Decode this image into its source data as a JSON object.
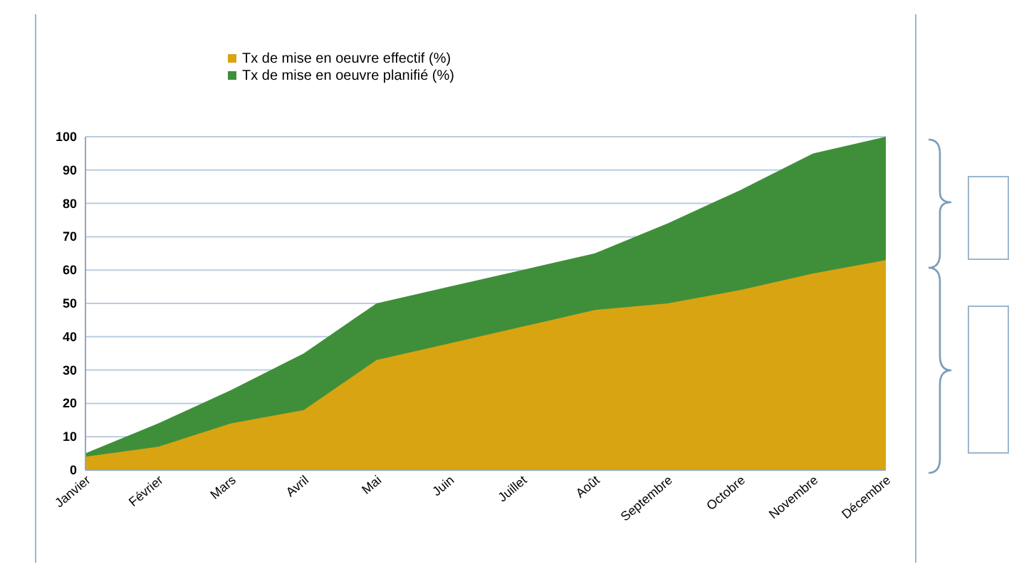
{
  "chart_data": {
    "type": "area",
    "categories": [
      "Janvier",
      "Février",
      "Mars",
      "Avril",
      "Mai",
      "Juin",
      "Juillet",
      "Août",
      "Septembre",
      "Octobre",
      "Novembre",
      "Décembre"
    ],
    "series": [
      {
        "name": "Tx de mise en oeuvre planifié (%)",
        "color": "#3f8f3a",
        "values": [
          5,
          14,
          24,
          35,
          50,
          55,
          60,
          65,
          74,
          84,
          95,
          100
        ]
      },
      {
        "name": "Tx de mise en oeuvre effectif (%)",
        "color": "#d8a412",
        "values": [
          4,
          7,
          14,
          18,
          33,
          38,
          43,
          48,
          50,
          54,
          59,
          63
        ]
      }
    ],
    "ylim": [
      0,
      100
    ],
    "yticks": [
      0,
      10,
      20,
      30,
      40,
      50,
      60,
      70,
      80,
      90,
      100
    ],
    "grid": "y",
    "legend": "top"
  }
}
